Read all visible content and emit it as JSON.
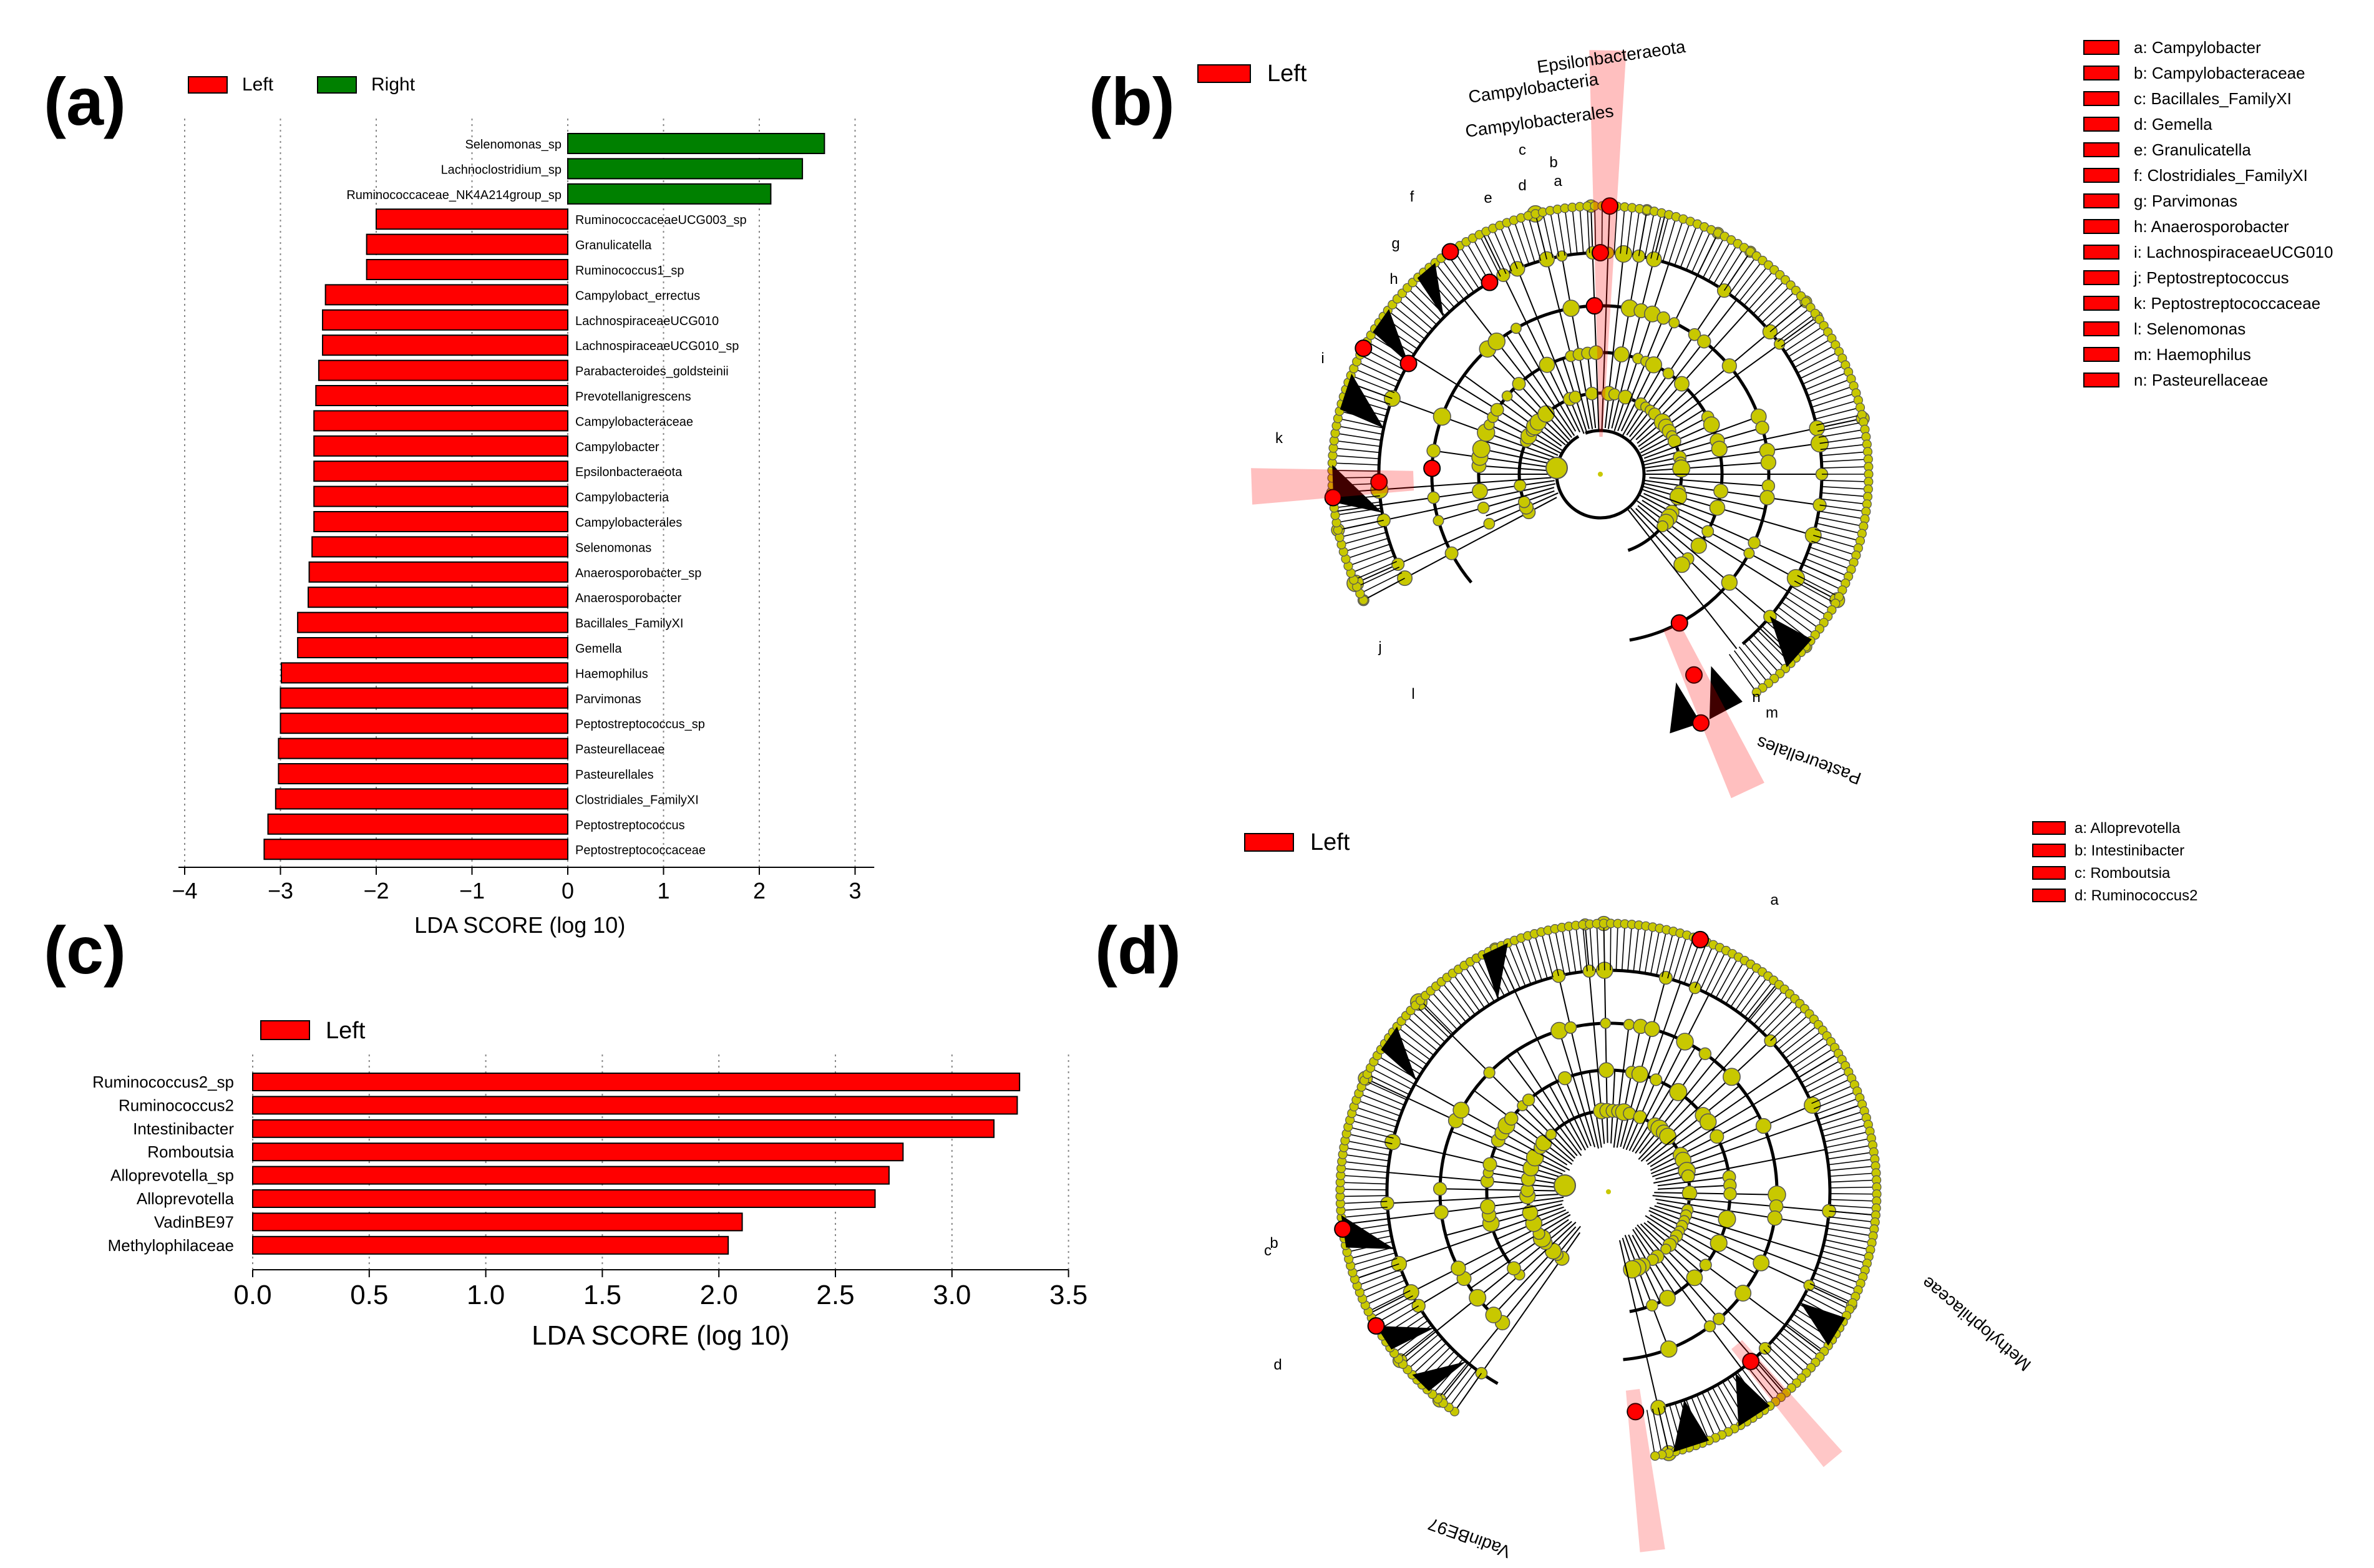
{
  "panels": {
    "a": "(a)",
    "b": "(b)",
    "c": "(c)",
    "d": "(d)"
  },
  "colors": {
    "left": "#ff0000",
    "right": "#008000",
    "node": "#c8c800",
    "grid": "#888888"
  },
  "chart_data": [
    {
      "id": "a",
      "type": "bar",
      "orientation": "horizontal",
      "legend": [
        "Left",
        "Right"
      ],
      "xlabel": "LDA SCORE (log 10)",
      "xlim": [
        -4,
        3.2
      ],
      "ticks": [
        -4,
        -3,
        -2,
        -1,
        0,
        1,
        2,
        3
      ],
      "tick_labels": [
        "−4",
        "−3",
        "−2",
        "−1",
        "0",
        "1",
        "2",
        "3"
      ],
      "bars": [
        {
          "label": "Selenomonas_sp",
          "value": 2.68,
          "group": "Right"
        },
        {
          "label": "Lachnoclostridium_sp",
          "value": 2.45,
          "group": "Right"
        },
        {
          "label": "Ruminococcaceae_NK4A214group_sp",
          "value": 2.12,
          "group": "Right"
        },
        {
          "label": "RuminococcaceaeUCG003_sp",
          "value": -2.0,
          "group": "Left"
        },
        {
          "label": "Granulicatella",
          "value": -2.1,
          "group": "Left"
        },
        {
          "label": "Ruminococcus1_sp",
          "value": -2.1,
          "group": "Left"
        },
        {
          "label": "Campylobact_errectus",
          "value": -2.53,
          "group": "Left"
        },
        {
          "label": "LachnospiraceaeUCG010",
          "value": -2.56,
          "group": "Left"
        },
        {
          "label": "LachnospiraceaeUCG010_sp",
          "value": -2.56,
          "group": "Left"
        },
        {
          "label": "Parabacteroides_goldsteinii",
          "value": -2.6,
          "group": "Left"
        },
        {
          "label": "Prevotellanigrescens",
          "value": -2.63,
          "group": "Left"
        },
        {
          "label": "Campylobacteraceae",
          "value": -2.65,
          "group": "Left"
        },
        {
          "label": "Campylobacter",
          "value": -2.65,
          "group": "Left"
        },
        {
          "label": "Epsilonbacteraeota",
          "value": -2.65,
          "group": "Left"
        },
        {
          "label": "Campylobacteria",
          "value": -2.65,
          "group": "Left"
        },
        {
          "label": "Campylobacterales",
          "value": -2.65,
          "group": "Left"
        },
        {
          "label": "Selenomonas",
          "value": -2.67,
          "group": "Left"
        },
        {
          "label": "Anaerosporobacter_sp",
          "value": -2.7,
          "group": "Left"
        },
        {
          "label": "Anaerosporobacter",
          "value": -2.71,
          "group": "Left"
        },
        {
          "label": "Bacillales_FamilyXI",
          "value": -2.82,
          "group": "Left"
        },
        {
          "label": "Gemella",
          "value": -2.82,
          "group": "Left"
        },
        {
          "label": "Haemophilus",
          "value": -2.99,
          "group": "Left"
        },
        {
          "label": "Parvimonas",
          "value": -3.0,
          "group": "Left"
        },
        {
          "label": "Peptostreptococcus_sp",
          "value": -3.0,
          "group": "Left"
        },
        {
          "label": "Pasteurellaceae",
          "value": -3.02,
          "group": "Left"
        },
        {
          "label": "Pasteurellales",
          "value": -3.02,
          "group": "Left"
        },
        {
          "label": "Clostridiales_FamilyXI",
          "value": -3.05,
          "group": "Left"
        },
        {
          "label": "Peptostreptococcus",
          "value": -3.13,
          "group": "Left"
        },
        {
          "label": "Peptostreptococcaceae",
          "value": -3.17,
          "group": "Left"
        }
      ]
    },
    {
      "id": "c",
      "type": "bar",
      "orientation": "horizontal",
      "legend": [
        "Left"
      ],
      "xlabel": "LDA SCORE (log 10)",
      "xlim": [
        0,
        3.5
      ],
      "ticks": [
        0,
        0.5,
        1,
        1.5,
        2,
        2.5,
        3,
        3.5
      ],
      "tick_labels": [
        "0.0",
        "0.5",
        "1.0",
        "1.5",
        "2.0",
        "2.5",
        "3.0",
        "3.5"
      ],
      "bars": [
        {
          "label": "Ruminococcus2_sp",
          "value": 3.29,
          "group": "Left"
        },
        {
          "label": "Ruminococcus2",
          "value": 3.28,
          "group": "Left"
        },
        {
          "label": "Intestinibacter",
          "value": 3.18,
          "group": "Left"
        },
        {
          "label": "Romboutsia",
          "value": 2.79,
          "group": "Left"
        },
        {
          "label": "Alloprevotella_sp",
          "value": 2.73,
          "group": "Left"
        },
        {
          "label": "Alloprevotella",
          "value": 2.67,
          "group": "Left"
        },
        {
          "label": "VadinBE97",
          "value": 2.1,
          "group": "Left"
        },
        {
          "label": "Methylophilaceae",
          "value": 2.04,
          "group": "Left"
        }
      ]
    },
    {
      "id": "b",
      "type": "cladogram",
      "legend_title": "Left",
      "legend": [
        "a: Campylobacter",
        "b: Campylobacteraceae",
        "c: Bacillales_FamilyXI",
        "d: Gemella",
        "e: Granulicatella",
        "f: Clostridiales_FamilyXI",
        "g: Parvimonas",
        "h: Anaerosporobacter",
        "i: LachnospiraceaeUCG010",
        "j: Peptostreptococcus",
        "k: Peptostreptococcaceae",
        "l: Selenomonas",
        "m: Haemophilus",
        "n: Pasteurellaceae"
      ],
      "clade_labels": [
        "Epsilonbacteraeota",
        "Campylobacteria",
        "Campylobacterales",
        "Pasteurellales"
      ],
      "letters": [
        "a",
        "b",
        "c",
        "d",
        "e",
        "f",
        "g",
        "h",
        "i",
        "j",
        "k",
        "l",
        "m",
        "n"
      ]
    },
    {
      "id": "d",
      "type": "cladogram",
      "legend_title": "Left",
      "legend": [
        "a: Alloprevotella",
        "b: Intestinibacter",
        "c: Romboutsia",
        "d: Ruminococcus2"
      ],
      "clade_labels": [
        "Methylophilaceae",
        "VadinBE97"
      ],
      "letters": [
        "a",
        "b",
        "c",
        "d"
      ]
    }
  ]
}
